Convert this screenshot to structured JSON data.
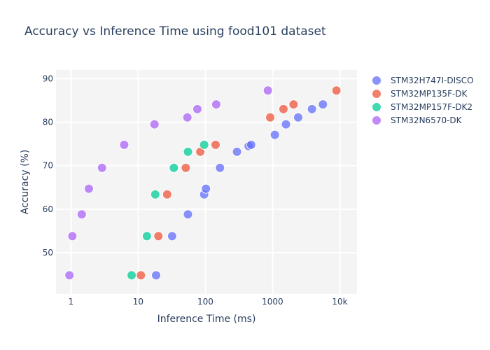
{
  "chart_data": {
    "type": "scatter",
    "title": "Accuracy vs Inference Time using food101 dataset",
    "xlabel": "Inference Time (ms)",
    "ylabel": "Accuracy (%)",
    "xscale": "log",
    "xlim": [
      0.6,
      18000
    ],
    "ylim": [
      40.5,
      92
    ],
    "grid": true,
    "legend_position": "right",
    "x_ticks": [
      {
        "value": 1,
        "label": "1"
      },
      {
        "value": 10,
        "label": "10"
      },
      {
        "value": 100,
        "label": "100"
      },
      {
        "value": 1000,
        "label": "1000"
      },
      {
        "value": 10000,
        "label": "10k"
      }
    ],
    "y_ticks": [
      50,
      60,
      70,
      80,
      90
    ],
    "series": [
      {
        "name": "STM32H747I-DISCO",
        "color": "#636efa",
        "points": [
          {
            "x": 18.5,
            "y": 44.8
          },
          {
            "x": 32,
            "y": 53.8
          },
          {
            "x": 55,
            "y": 58.8
          },
          {
            "x": 96,
            "y": 63.4
          },
          {
            "x": 102,
            "y": 64.7
          },
          {
            "x": 165,
            "y": 69.5
          },
          {
            "x": 295,
            "y": 73.2
          },
          {
            "x": 440,
            "y": 74.5
          },
          {
            "x": 480,
            "y": 74.8
          },
          {
            "x": 1080,
            "y": 77.1
          },
          {
            "x": 1580,
            "y": 79.5
          },
          {
            "x": 2400,
            "y": 81.1
          },
          {
            "x": 3850,
            "y": 83
          },
          {
            "x": 5600,
            "y": 84.1
          }
        ]
      },
      {
        "name": "STM32MP135F-DK",
        "color": "#ef553b",
        "points": [
          {
            "x": 11,
            "y": 44.8
          },
          {
            "x": 20,
            "y": 53.8
          },
          {
            "x": 27,
            "y": 63.4
          },
          {
            "x": 51,
            "y": 69.5
          },
          {
            "x": 84,
            "y": 73.2
          },
          {
            "x": 142,
            "y": 74.8
          },
          {
            "x": 920,
            "y": 81.1
          },
          {
            "x": 1450,
            "y": 83
          },
          {
            "x": 2050,
            "y": 84.1
          },
          {
            "x": 8900,
            "y": 87.3
          }
        ]
      },
      {
        "name": "STM32MP157F-DK2",
        "color": "#00cc96",
        "points": [
          {
            "x": 8,
            "y": 44.8
          },
          {
            "x": 13.5,
            "y": 53.8
          },
          {
            "x": 18,
            "y": 63.4
          },
          {
            "x": 34,
            "y": 69.5
          },
          {
            "x": 55,
            "y": 73.2
          },
          {
            "x": 96,
            "y": 74.8
          }
        ]
      },
      {
        "name": "STM32N6570-DK",
        "color": "#ab63fa",
        "points": [
          {
            "x": 0.95,
            "y": 44.8
          },
          {
            "x": 1.05,
            "y": 53.8
          },
          {
            "x": 1.45,
            "y": 58.8
          },
          {
            "x": 1.85,
            "y": 64.7
          },
          {
            "x": 2.9,
            "y": 69.5
          },
          {
            "x": 6.2,
            "y": 74.8
          },
          {
            "x": 17.5,
            "y": 79.5
          },
          {
            "x": 54,
            "y": 81.1
          },
          {
            "x": 76,
            "y": 83
          },
          {
            "x": 145,
            "y": 84.1
          },
          {
            "x": 850,
            "y": 87.3
          }
        ]
      }
    ]
  }
}
